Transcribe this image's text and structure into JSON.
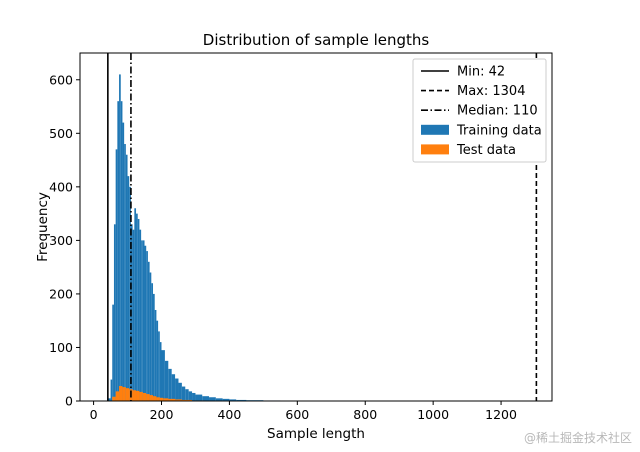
{
  "chart_data": {
    "type": "bar",
    "title": "Distribution of sample lengths",
    "xlabel": "Sample length",
    "ylabel": "Frequency",
    "xlim": [
      -40,
      1350
    ],
    "ylim": [
      0,
      650
    ],
    "xticks": [
      0,
      200,
      400,
      600,
      800,
      1000,
      1200
    ],
    "yticks": [
      0,
      100,
      200,
      300,
      400,
      500,
      600
    ],
    "grid": false,
    "legend_position": "top-right",
    "series": [
      {
        "name": "Training data",
        "color": "#1f77b4",
        "bins": [
          [
            42,
            5
          ],
          [
            50,
            40
          ],
          [
            55,
            180
          ],
          [
            60,
            330
          ],
          [
            65,
            470
          ],
          [
            70,
            560
          ],
          [
            75,
            610
          ],
          [
            80,
            560
          ],
          [
            85,
            520
          ],
          [
            90,
            480
          ],
          [
            95,
            460
          ],
          [
            100,
            420
          ],
          [
            105,
            400
          ],
          [
            110,
            330
          ],
          [
            115,
            320
          ],
          [
            120,
            360
          ],
          [
            125,
            350
          ],
          [
            130,
            340
          ],
          [
            135,
            320
          ],
          [
            140,
            300
          ],
          [
            145,
            300
          ],
          [
            150,
            290
          ],
          [
            155,
            280
          ],
          [
            160,
            260
          ],
          [
            165,
            240
          ],
          [
            170,
            220
          ],
          [
            175,
            200
          ],
          [
            180,
            170
          ],
          [
            185,
            150
          ],
          [
            190,
            130
          ],
          [
            195,
            110
          ],
          [
            200,
            95
          ],
          [
            210,
            75
          ],
          [
            220,
            60
          ],
          [
            230,
            50
          ],
          [
            240,
            42
          ],
          [
            250,
            34
          ],
          [
            260,
            27
          ],
          [
            270,
            22
          ],
          [
            280,
            18
          ],
          [
            290,
            15
          ],
          [
            300,
            12
          ],
          [
            320,
            9
          ],
          [
            340,
            7
          ],
          [
            360,
            5
          ],
          [
            380,
            4
          ],
          [
            400,
            3
          ],
          [
            420,
            2
          ],
          [
            450,
            1.5
          ],
          [
            500,
            1
          ],
          [
            550,
            0.6
          ],
          [
            600,
            0.4
          ],
          [
            650,
            0
          ]
        ]
      },
      {
        "name": "Test data",
        "color": "#ff7f0e",
        "bins": [
          [
            42,
            0
          ],
          [
            55,
            8
          ],
          [
            65,
            18
          ],
          [
            75,
            28
          ],
          [
            85,
            26
          ],
          [
            95,
            24
          ],
          [
            105,
            22
          ],
          [
            115,
            20
          ],
          [
            125,
            19
          ],
          [
            135,
            17
          ],
          [
            145,
            15
          ],
          [
            155,
            13
          ],
          [
            165,
            11
          ],
          [
            175,
            9
          ],
          [
            185,
            7
          ],
          [
            195,
            6
          ],
          [
            205,
            5
          ],
          [
            220,
            4
          ],
          [
            240,
            3
          ],
          [
            260,
            2
          ],
          [
            290,
            1
          ],
          [
            330,
            0
          ]
        ]
      }
    ],
    "reference_lines": [
      {
        "name": "Min: 42",
        "x": 42,
        "style": "solid"
      },
      {
        "name": "Max: 1304",
        "x": 1304,
        "style": "dashed"
      },
      {
        "name": "Median: 110",
        "x": 110,
        "style": "dashdot"
      }
    ]
  },
  "watermark": "@稀土掘金技术社区"
}
